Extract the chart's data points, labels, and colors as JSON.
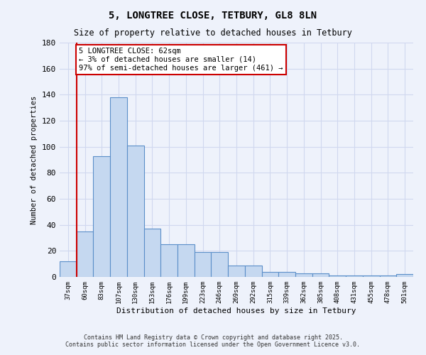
{
  "title": "5, LONGTREE CLOSE, TETBURY, GL8 8LN",
  "subtitle": "Size of property relative to detached houses in Tetbury",
  "xlabel": "Distribution of detached houses by size in Tetbury",
  "ylabel": "Number of detached properties",
  "categories": [
    "37sqm",
    "60sqm",
    "83sqm",
    "107sqm",
    "130sqm",
    "153sqm",
    "176sqm",
    "199sqm",
    "223sqm",
    "246sqm",
    "269sqm",
    "292sqm",
    "315sqm",
    "339sqm",
    "362sqm",
    "385sqm",
    "408sqm",
    "431sqm",
    "455sqm",
    "478sqm",
    "501sqm"
  ],
  "values": [
    12,
    35,
    93,
    138,
    101,
    37,
    25,
    25,
    19,
    19,
    9,
    9,
    4,
    4,
    3,
    3,
    1,
    1,
    1,
    1,
    2
  ],
  "bar_color": "#c5d8f0",
  "bar_edge_color": "#5b8fc9",
  "vline_color": "#cc0000",
  "vline_x_index": 1,
  "annotation_text": "5 LONGTREE CLOSE: 62sqm\n← 3% of detached houses are smaller (14)\n97% of semi-detached houses are larger (461) →",
  "annotation_box_color": "#ffffff",
  "annotation_box_edge_color": "#cc0000",
  "ylim": [
    0,
    180
  ],
  "background_color": "#eef2fb",
  "grid_color": "#d0d8ef",
  "footer1": "Contains HM Land Registry data © Crown copyright and database right 2025.",
  "footer2": "Contains public sector information licensed under the Open Government Licence v3.0."
}
